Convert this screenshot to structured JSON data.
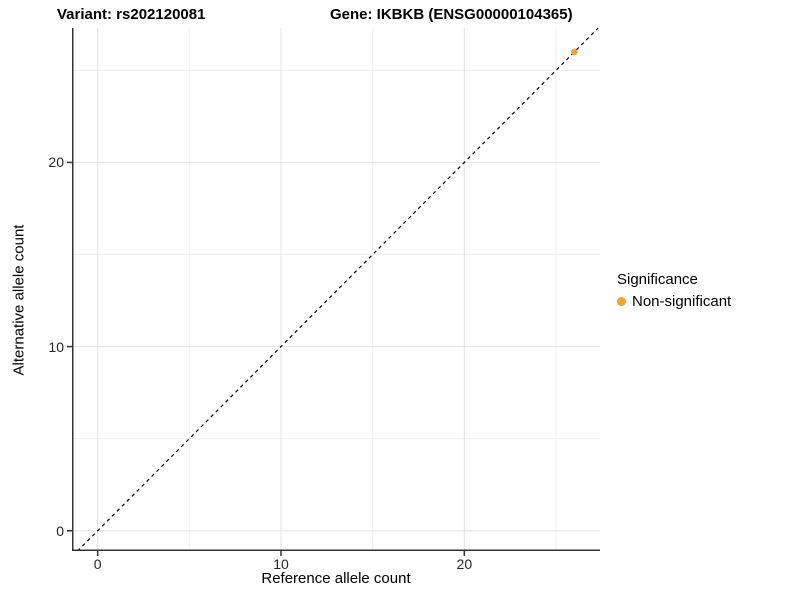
{
  "header": {
    "variant_title": "Variant: rs202120081",
    "gene_title": "Gene: IKBKB (ENSG00000104365)"
  },
  "chart_data": {
    "type": "scatter",
    "title": "Variant: rs202120081    Gene: IKBKB (ENSG00000104365)",
    "xlabel": "Reference allele count",
    "ylabel": "Alternative allele count",
    "xlim": [
      -1.4,
      27.4
    ],
    "ylim": [
      -1.1,
      27.3
    ],
    "x_ticks": [
      0,
      10,
      20
    ],
    "y_ticks": [
      0,
      10,
      20
    ],
    "x_minor_gridlines": [
      5,
      15,
      25
    ],
    "y_minor_gridlines": [
      5,
      15,
      25
    ],
    "grid": true,
    "background": "#ffffff",
    "reference_line": {
      "equation": "y = x",
      "style": "dashed",
      "color": "#000000"
    },
    "series": [
      {
        "name": "Non-significant",
        "color": "#F9A029",
        "points": [
          {
            "x": 26,
            "y": 26
          }
        ]
      }
    ],
    "legend": {
      "title": "Significance",
      "position": "right",
      "items": [
        {
          "label": "Non-significant",
          "color": "#F9A029"
        }
      ]
    },
    "colors": {
      "point_non_significant": "#F9A029",
      "grid_major": "#E4E4E4",
      "grid_minor": "#EFEFEF",
      "axis_line": "#333333",
      "tick_mark": "#333333"
    }
  }
}
